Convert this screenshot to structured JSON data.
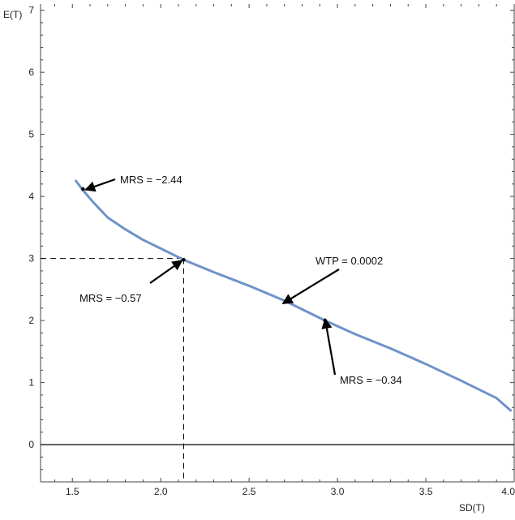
{
  "chart_data": {
    "type": "line",
    "title": "",
    "xlabel": "SD(T)",
    "ylabel": "E(T)",
    "xlim": [
      1.32,
      4.0
    ],
    "ylim": [
      -0.6,
      7.1
    ],
    "x_ticks": [
      1.5,
      2.0,
      2.5,
      3.0,
      3.5,
      4.0
    ],
    "x_tick_labels": [
      "1.5",
      "2.0",
      "2.5",
      "3.0",
      "3.5",
      "4.0"
    ],
    "y_ticks": [
      0,
      1,
      2,
      3,
      4,
      5,
      6,
      7
    ],
    "y_tick_labels": [
      "0",
      "1",
      "2",
      "3",
      "4",
      "5",
      "6",
      "7"
    ],
    "grid": false,
    "series": [
      {
        "color": "#6f93c8",
        "x": [
          1.52,
          1.56,
          1.62,
          1.7,
          1.8,
          1.9,
          2.0,
          2.13,
          2.3,
          2.5,
          2.7,
          2.93,
          3.1,
          3.3,
          3.5,
          3.7,
          3.9,
          3.98
        ],
        "y": [
          4.25,
          4.1,
          3.9,
          3.66,
          3.47,
          3.3,
          3.16,
          2.98,
          2.78,
          2.56,
          2.32,
          2.0,
          1.78,
          1.55,
          1.3,
          1.03,
          0.75,
          0.55
        ]
      }
    ],
    "reference_lines": {
      "x": 2.13,
      "y": 3.0,
      "style": "dashed"
    },
    "points": [
      {
        "x": 1.56,
        "y": 4.12
      },
      {
        "x": 2.13,
        "y": 2.98
      },
      {
        "x": 2.93,
        "y": 2.0
      }
    ],
    "annotations": [
      {
        "label": "MRS = −2.44",
        "x": 1.56,
        "y": 4.12
      },
      {
        "label": "MRS  = −0.57",
        "x": 2.13,
        "y": 2.98
      },
      {
        "label": "WTP  = 0.0002",
        "x": 2.7,
        "y": 2.3
      },
      {
        "label": "MRS  = −0.34",
        "x": 2.93,
        "y": 2.0
      }
    ]
  }
}
